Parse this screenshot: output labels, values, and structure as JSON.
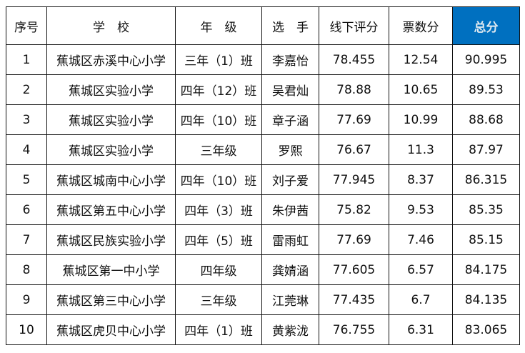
{
  "headers": [
    "序号",
    "学　校",
    "年　级",
    "选　手",
    "线下评分",
    "票数分",
    "总分"
  ],
  "accent_color": "#0070c0",
  "rows": [
    [
      "1",
      "蕉城区赤溪中心小学",
      "三年（1）班",
      "李嘉怡",
      "78.455",
      "12.54",
      "90.995"
    ],
    [
      "2",
      "蕉城区实验小学",
      "四年（12）班",
      "吴君灿",
      "78.88",
      "10.65",
      "89.53"
    ],
    [
      "3",
      "蕉城区实验小学",
      "四年（10）班",
      "章子涵",
      "77.69",
      "10.99",
      "88.68"
    ],
    [
      "4",
      "蕉城区实验小学",
      "三年级",
      "罗熙",
      "76.67",
      "11.3",
      "87.97"
    ],
    [
      "5",
      "蕉城区城南中心小学",
      "四年（10）班",
      "刘子爱",
      "77.945",
      "8.37",
      "86.315"
    ],
    [
      "6",
      "蕉城区第五中心小学",
      "四年（3）班",
      "朱伊茜",
      "75.82",
      "9.53",
      "85.35"
    ],
    [
      "7",
      "蕉城区民族实验小学",
      "四年（5）班",
      "雷雨虹",
      "77.69",
      "7.46",
      "85.15"
    ],
    [
      "8",
      "蕉城区第一中小学",
      "四年级",
      "龚婧涵",
      "77.605",
      "6.57",
      "84.175"
    ],
    [
      "9",
      "蕉城区第三中心小学",
      "三年级",
      "江莞琳",
      "77.435",
      "6.7",
      "84.135"
    ],
    [
      "10",
      "蕉城区虎贝中心小学",
      "四年（1）班",
      "黄紫泷",
      "76.755",
      "6.31",
      "83.065"
    ]
  ]
}
